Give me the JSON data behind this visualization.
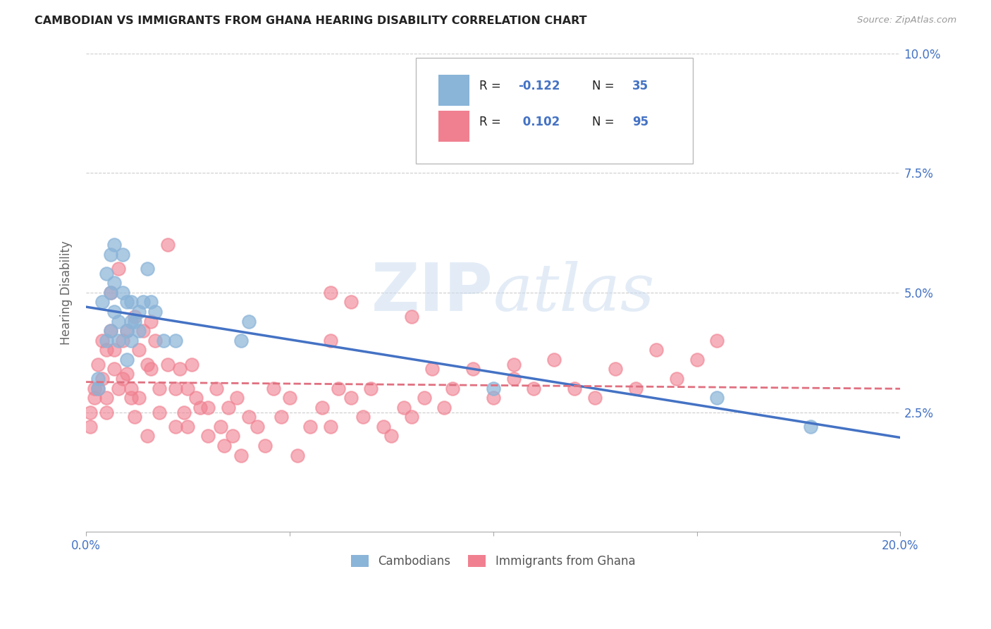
{
  "title": "CAMBODIAN VS IMMIGRANTS FROM GHANA HEARING DISABILITY CORRELATION CHART",
  "source": "Source: ZipAtlas.com",
  "ylabel": "Hearing Disability",
  "xlim": [
    0.0,
    0.2
  ],
  "ylim": [
    0.0,
    0.1
  ],
  "xticks": [
    0.0,
    0.05,
    0.1,
    0.15,
    0.2
  ],
  "xticklabels": [
    "0.0%",
    "",
    "",
    "",
    "20.0%"
  ],
  "yticks_right": [
    0.025,
    0.05,
    0.075,
    0.1
  ],
  "yticklabels_right": [
    "2.5%",
    "5.0%",
    "7.5%",
    "10.0%"
  ],
  "background_color": "#ffffff",
  "grid_color": "#cccccc",
  "watermark": "ZIPatlas",
  "cambodian_color": "#8ab4d8",
  "ghana_color": "#f08090",
  "trend_cambodian_color": "#4472c4",
  "trend_ghana_color": "#e07080",
  "cambodian_x": [
    0.003,
    0.003,
    0.004,
    0.005,
    0.005,
    0.006,
    0.006,
    0.006,
    0.007,
    0.007,
    0.007,
    0.008,
    0.008,
    0.009,
    0.009,
    0.01,
    0.01,
    0.01,
    0.011,
    0.011,
    0.011,
    0.012,
    0.013,
    0.013,
    0.014,
    0.015,
    0.016,
    0.017,
    0.019,
    0.022,
    0.038,
    0.04,
    0.1,
    0.155,
    0.178
  ],
  "cambodian_y": [
    0.032,
    0.03,
    0.048,
    0.04,
    0.054,
    0.05,
    0.042,
    0.058,
    0.046,
    0.052,
    0.06,
    0.044,
    0.04,
    0.058,
    0.05,
    0.048,
    0.042,
    0.036,
    0.048,
    0.044,
    0.04,
    0.044,
    0.042,
    0.046,
    0.048,
    0.055,
    0.048,
    0.046,
    0.04,
    0.04,
    0.04,
    0.044,
    0.03,
    0.028,
    0.022
  ],
  "ghana_x": [
    0.001,
    0.001,
    0.002,
    0.002,
    0.003,
    0.003,
    0.004,
    0.004,
    0.005,
    0.005,
    0.005,
    0.006,
    0.006,
    0.007,
    0.007,
    0.008,
    0.008,
    0.009,
    0.009,
    0.01,
    0.01,
    0.011,
    0.011,
    0.012,
    0.012,
    0.013,
    0.013,
    0.014,
    0.015,
    0.015,
    0.016,
    0.016,
    0.017,
    0.018,
    0.018,
    0.02,
    0.02,
    0.022,
    0.022,
    0.023,
    0.024,
    0.025,
    0.025,
    0.026,
    0.027,
    0.028,
    0.03,
    0.03,
    0.032,
    0.033,
    0.034,
    0.035,
    0.036,
    0.037,
    0.038,
    0.04,
    0.042,
    0.044,
    0.046,
    0.048,
    0.05,
    0.052,
    0.055,
    0.058,
    0.06,
    0.062,
    0.065,
    0.068,
    0.07,
    0.073,
    0.075,
    0.078,
    0.08,
    0.083,
    0.085,
    0.088,
    0.09,
    0.095,
    0.1,
    0.105,
    0.11,
    0.115,
    0.12,
    0.125,
    0.13,
    0.135,
    0.14,
    0.145,
    0.15,
    0.155,
    0.06,
    0.065,
    0.105,
    0.06,
    0.08
  ],
  "ghana_y": [
    0.025,
    0.022,
    0.028,
    0.03,
    0.035,
    0.03,
    0.032,
    0.04,
    0.038,
    0.028,
    0.025,
    0.05,
    0.042,
    0.034,
    0.038,
    0.03,
    0.055,
    0.04,
    0.032,
    0.042,
    0.033,
    0.03,
    0.028,
    0.045,
    0.024,
    0.038,
    0.028,
    0.042,
    0.035,
    0.02,
    0.034,
    0.044,
    0.04,
    0.03,
    0.025,
    0.06,
    0.035,
    0.03,
    0.022,
    0.034,
    0.025,
    0.03,
    0.022,
    0.035,
    0.028,
    0.026,
    0.026,
    0.02,
    0.03,
    0.022,
    0.018,
    0.026,
    0.02,
    0.028,
    0.016,
    0.024,
    0.022,
    0.018,
    0.03,
    0.024,
    0.028,
    0.016,
    0.022,
    0.026,
    0.022,
    0.03,
    0.028,
    0.024,
    0.03,
    0.022,
    0.02,
    0.026,
    0.024,
    0.028,
    0.034,
    0.026,
    0.03,
    0.034,
    0.028,
    0.032,
    0.03,
    0.036,
    0.03,
    0.028,
    0.034,
    0.03,
    0.038,
    0.032,
    0.036,
    0.04,
    0.05,
    0.048,
    0.035,
    0.04,
    0.045
  ]
}
